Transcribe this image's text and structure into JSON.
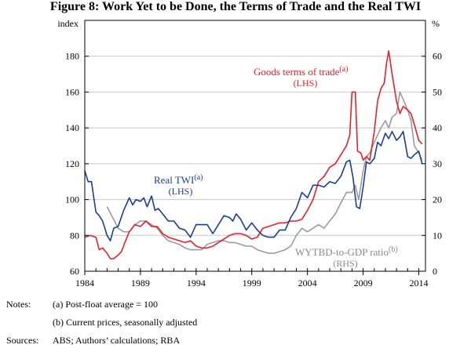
{
  "title": "Figure 8: Work Yet to be Done, the Terms of Trade and the Real TWI",
  "chart_data": {
    "type": "line",
    "title": "Figure 8: Work Yet to be Done, the Terms of Trade and the Real TWI",
    "left_axis": {
      "label": "index",
      "range": [
        60,
        200
      ],
      "ticks": [
        60,
        80,
        100,
        120,
        140,
        160,
        180
      ]
    },
    "right_axis": {
      "label": "%",
      "range": [
        0,
        70
      ],
      "ticks": [
        0,
        10,
        20,
        30,
        40,
        50,
        60
      ]
    },
    "xlim": [
      1984,
      2014.6
    ],
    "x_ticks": [
      "1984",
      "1989",
      "1994",
      "1999",
      "2004",
      "2009",
      "2014"
    ],
    "x_tick_values": [
      1984,
      1989,
      1994,
      1999,
      2004,
      2009,
      2014
    ],
    "grid": true,
    "series": [
      {
        "name": "Goods terms of trade",
        "label": "Goods terms of trade",
        "superscript": "(a)",
        "axis_note": "(LHS)",
        "axis": "left",
        "color": "#e8202a",
        "x": [
          1984.0,
          1984.5,
          1985.0,
          1985.3,
          1985.6,
          1986.0,
          1986.3,
          1986.6,
          1987.0,
          1987.3,
          1987.6,
          1988.0,
          1988.5,
          1989.0,
          1989.5,
          1990.0,
          1990.5,
          1991.0,
          1991.5,
          1992.0,
          1992.5,
          1993.0,
          1993.5,
          1994.0,
          1994.5,
          1995.0,
          1995.5,
          1996.0,
          1996.5,
          1997.0,
          1997.5,
          1998.0,
          1998.5,
          1999.0,
          1999.5,
          2000.0,
          2000.5,
          2001.0,
          2001.5,
          2002.0,
          2002.5,
          2003.0,
          2003.5,
          2004.0,
          2004.5,
          2005.0,
          2005.5,
          2006.0,
          2006.5,
          2007.0,
          2007.5,
          2007.8,
          2008.0,
          2008.3,
          2008.5,
          2008.8,
          2009.0,
          2009.3,
          2009.6,
          2010.0,
          2010.3,
          2010.6,
          2010.9,
          2011.1,
          2011.3,
          2011.6,
          2012.0,
          2012.3,
          2012.6,
          2013.0,
          2013.3,
          2013.6,
          2014.0,
          2014.3
        ],
        "values": [
          79,
          80,
          79,
          72,
          73,
          70,
          67,
          67,
          69,
          71,
          76,
          82,
          86,
          85,
          88,
          85,
          85,
          81,
          79,
          78,
          77,
          76,
          77,
          74,
          73,
          73,
          74,
          76,
          78,
          80,
          81,
          81,
          80,
          78,
          79,
          84,
          85,
          86,
          87,
          87,
          88,
          88,
          89,
          94,
          100,
          110,
          113,
          118,
          120,
          125,
          130,
          136,
          160,
          160,
          127,
          126,
          122,
          124,
          122,
          138,
          155,
          162,
          165,
          176,
          183,
          170,
          155,
          148,
          152,
          150,
          148,
          142,
          133,
          131
        ]
      },
      {
        "name": "Real TWI",
        "label": "Real TWI",
        "superscript": "(a)",
        "axis_note": "(LHS)",
        "axis": "left",
        "color": "#1b3f8e",
        "x": [
          1984.0,
          1984.3,
          1984.6,
          1985.0,
          1985.3,
          1985.6,
          1986.0,
          1986.3,
          1986.6,
          1987.0,
          1987.5,
          1988.0,
          1988.3,
          1988.6,
          1989.0,
          1989.3,
          1989.6,
          1990.0,
          1990.3,
          1990.6,
          1991.0,
          1991.5,
          1992.0,
          1992.5,
          1993.0,
          1993.5,
          1994.0,
          1994.5,
          1995.0,
          1995.5,
          1996.0,
          1996.5,
          1997.0,
          1997.3,
          1997.6,
          1998.0,
          1998.5,
          1999.0,
          1999.5,
          2000.0,
          2000.5,
          2001.0,
          2001.5,
          2002.0,
          2002.5,
          2003.0,
          2003.5,
          2004.0,
          2004.5,
          2005.0,
          2005.5,
          2006.0,
          2006.5,
          2007.0,
          2007.5,
          2007.8,
          2008.1,
          2008.4,
          2008.7,
          2009.0,
          2009.3,
          2009.6,
          2010.0,
          2010.3,
          2010.6,
          2011.0,
          2011.3,
          2011.6,
          2012.0,
          2012.3,
          2012.6,
          2013.0,
          2013.3,
          2013.6,
          2014.0,
          2014.3
        ],
        "values": [
          116,
          110,
          110,
          93,
          91,
          88,
          80,
          77,
          84,
          85,
          94,
          101,
          97,
          100,
          99,
          101,
          96,
          102,
          94,
          95,
          92,
          88,
          88,
          84,
          83,
          79,
          86,
          86,
          86,
          81,
          86,
          91,
          90,
          88,
          92,
          89,
          83,
          87,
          83,
          80,
          79,
          79,
          83,
          83,
          90,
          95,
          104,
          101,
          108,
          108,
          107,
          110,
          109,
          113,
          121,
          122,
          112,
          96,
          95,
          107,
          121,
          120,
          123,
          132,
          130,
          137,
          134,
          138,
          133,
          135,
          138,
          124,
          123,
          125,
          127,
          120
        ]
      },
      {
        "name": "WYTBD-to-GDP ratio",
        "label": "WYTBD-to-GDP ratio",
        "superscript": "(b)",
        "axis_note": "(RHS)",
        "axis": "right",
        "color": "#9b9b9b",
        "x": [
          1986.0,
          1986.5,
          1987.0,
          1987.5,
          1988.0,
          1988.5,
          1989.0,
          1989.5,
          1990.0,
          1990.5,
          1991.0,
          1991.5,
          1992.0,
          1992.5,
          1993.0,
          1993.5,
          1994.0,
          1994.5,
          1995.0,
          1995.5,
          1996.0,
          1996.5,
          1997.0,
          1997.5,
          1998.0,
          1998.5,
          1999.0,
          1999.5,
          2000.0,
          2000.5,
          2001.0,
          2001.5,
          2002.0,
          2002.5,
          2003.0,
          2003.5,
          2004.0,
          2004.5,
          2005.0,
          2005.5,
          2006.0,
          2006.5,
          2007.0,
          2007.5,
          2008.0,
          2008.3,
          2008.6,
          2009.0,
          2009.3,
          2009.6,
          2010.0,
          2010.3,
          2010.6,
          2011.0,
          2011.3,
          2011.6,
          2012.0,
          2012.3,
          2012.6,
          2013.0,
          2013.3,
          2013.6,
          2014.0,
          2014.3
        ],
        "values": [
          18,
          15,
          12,
          11,
          11,
          13,
          14,
          14,
          13,
          12,
          10,
          8.5,
          8,
          7.5,
          6.5,
          6,
          6,
          6,
          7.5,
          8,
          8.5,
          8.5,
          8,
          8,
          7.5,
          7,
          7,
          6,
          5.5,
          5,
          5,
          5.5,
          6,
          7,
          10,
          12,
          11,
          12,
          13,
          12,
          14,
          16,
          19,
          22,
          22,
          24,
          20,
          28,
          32,
          33,
          36,
          38,
          40,
          42,
          40,
          43,
          44,
          50,
          48,
          45,
          42,
          35,
          33,
          31
        ]
      }
    ],
    "annotations": [
      "(LHS)",
      "(LHS)",
      "(RHS)"
    ]
  },
  "notes": {
    "notes_label": "Notes:",
    "note_a": "(a) Post-float average = 100",
    "note_b": "(b) Current prices, seasonally adjusted",
    "sources_label": "Sources:",
    "sources_text": "ABS; Authors’ calculations; RBA"
  }
}
